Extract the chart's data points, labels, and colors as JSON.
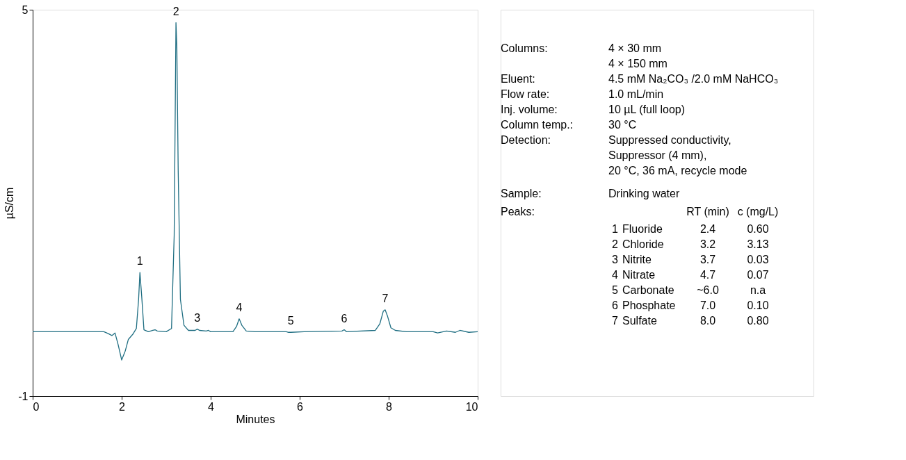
{
  "chart_data": {
    "type": "line",
    "xlabel": "Minutes",
    "ylabel": "µS/cm",
    "xlim": [
      0,
      10
    ],
    "ylim": [
      -1,
      5
    ],
    "xticks": [
      0,
      2,
      4,
      6,
      8,
      10
    ],
    "yticks": [
      -1,
      5
    ],
    "grid": false,
    "marker": "none",
    "line_style": "solid",
    "series": [
      {
        "color": "#1f6e82",
        "x": [
          0,
          1.6,
          1.7,
          1.78,
          1.85,
          1.92,
          2.0,
          2.08,
          2.15,
          2.25,
          2.33,
          2.38,
          2.41,
          2.45,
          2.5,
          2.6,
          2.7,
          2.75,
          2.8,
          3.0,
          3.12,
          3.18,
          3.22,
          3.24,
          3.27,
          3.32,
          3.4,
          3.5,
          3.65,
          3.7,
          3.75,
          3.9,
          3.95,
          4.0,
          4.5,
          4.58,
          4.64,
          4.7,
          4.8,
          5.0,
          5.7,
          5.75,
          5.8,
          6.1,
          6.95,
          7.0,
          7.05,
          7.7,
          7.8,
          7.88,
          7.92,
          7.97,
          8.05,
          8.15,
          8.4,
          9.0,
          9.1,
          9.3,
          9.5,
          9.6,
          9.8,
          10.0
        ],
        "values": [
          0,
          0,
          -0.03,
          -0.06,
          -0.02,
          -0.2,
          -0.44,
          -0.3,
          -0.12,
          -0.04,
          0.05,
          0.5,
          0.92,
          0.55,
          0.03,
          0,
          0.02,
          0.03,
          0.01,
          0,
          0.05,
          1.5,
          4.8,
          4.4,
          2.5,
          0.5,
          0.1,
          0.02,
          0.02,
          0.04,
          0.02,
          0.01,
          0.02,
          0,
          0,
          0.08,
          0.2,
          0.1,
          0.01,
          0,
          0,
          -0.01,
          -0.01,
          0,
          0.01,
          0.03,
          0,
          0.02,
          0.12,
          0.32,
          0.34,
          0.25,
          0.06,
          0.02,
          0,
          0,
          -0.02,
          0.01,
          -0.01,
          0.02,
          -0.01,
          0
        ]
      }
    ],
    "annotations": [
      {
        "text": "1",
        "x": 2.41,
        "y": 0.92
      },
      {
        "text": "2",
        "x": 3.22,
        "y": 4.8
      },
      {
        "text": "3",
        "x": 3.7,
        "y": 0.04
      },
      {
        "text": "4",
        "x": 4.64,
        "y": 0.2
      },
      {
        "text": "5",
        "x": 5.8,
        "y": -0.01
      },
      {
        "text": "6",
        "x": 7.0,
        "y": 0.03
      },
      {
        "text": "7",
        "x": 7.92,
        "y": 0.34
      },
      "Columns:",
      "4 × 30 mm",
      "4 × 150 mm",
      "Eluent:",
      "4.5 mM Na₂CO₃ /2.0 mM NaHCO₃",
      "Flow rate:",
      "1.0 mL/min",
      "Inj. volume:",
      "10 µL (full loop)",
      "Column temp.:",
      "30 °C",
      "Detection:",
      "Suppressed conductivity,",
      "Suppressor (4 mm),",
      "20 °C, 36 mA, recycle mode",
      "Sample:",
      "Drinking water",
      "Peaks:",
      "RT (min)",
      "c (mg/L)",
      "1",
      "Fluoride",
      "2.4",
      "0.60",
      "2",
      "Chloride",
      "3.2",
      "3.13",
      "3",
      "Nitrite",
      "3.7",
      "0.03",
      "4",
      "Nitrate",
      "4.7",
      "0.07",
      "5",
      "Carbonate",
      "~6.0",
      "n.a",
      "6",
      "Phosphate",
      "7.0",
      "0.10",
      "7",
      "Sulfate",
      "8.0",
      "0.80"
    ]
  }
}
